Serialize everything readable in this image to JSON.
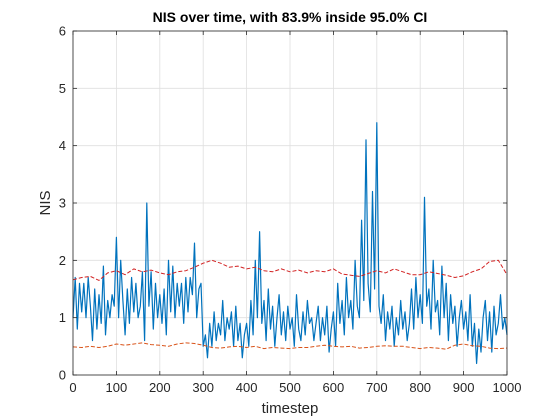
{
  "figure": {
    "background": "#ffffff"
  },
  "chart_data": {
    "type": "line",
    "title": "NIS over time, with 83.9% inside 95.0% CI",
    "xlabel": "timestep",
    "ylabel": "NIS",
    "xlim": [
      0,
      1000
    ],
    "ylim": [
      0,
      6
    ],
    "xticks": [
      "0",
      "100",
      "200",
      "300",
      "400",
      "500",
      "600",
      "700",
      "800",
      "900",
      "1000"
    ],
    "yticks": [
      "0",
      "1",
      "2",
      "3",
      "4",
      "5",
      "6"
    ],
    "grid": true,
    "colors": {
      "nis": "#0072BD",
      "ci_upper": "#D22222",
      "ci_lower": "#D95319",
      "grid": "#DFDFDF",
      "axis": "#262626"
    },
    "series": [
      {
        "role": "nis",
        "style": "solid",
        "x": [
          0,
          5,
          10,
          15,
          20,
          25,
          30,
          35,
          40,
          45,
          50,
          55,
          60,
          65,
          70,
          75,
          80,
          85,
          90,
          95,
          100,
          105,
          110,
          115,
          120,
          125,
          130,
          135,
          140,
          145,
          150,
          155,
          160,
          165,
          170,
          175,
          180,
          185,
          190,
          195,
          200,
          205,
          210,
          215,
          220,
          225,
          230,
          235,
          240,
          245,
          250,
          255,
          260,
          265,
          270,
          275,
          280,
          285,
          290,
          295,
          300,
          305,
          310,
          315,
          320,
          325,
          330,
          335,
          340,
          345,
          350,
          355,
          360,
          365,
          370,
          375,
          380,
          385,
          390,
          395,
          400,
          405,
          410,
          415,
          420,
          425,
          430,
          435,
          440,
          445,
          450,
          455,
          460,
          465,
          470,
          475,
          480,
          485,
          490,
          495,
          500,
          505,
          510,
          515,
          520,
          525,
          530,
          535,
          540,
          545,
          550,
          555,
          560,
          565,
          570,
          575,
          580,
          585,
          590,
          595,
          600,
          605,
          610,
          615,
          620,
          625,
          630,
          635,
          640,
          645,
          650,
          655,
          660,
          665,
          670,
          675,
          680,
          685,
          690,
          695,
          700,
          705,
          710,
          715,
          720,
          725,
          730,
          735,
          740,
          745,
          750,
          755,
          760,
          765,
          770,
          775,
          780,
          785,
          790,
          795,
          800,
          805,
          810,
          815,
          820,
          825,
          830,
          835,
          840,
          845,
          850,
          855,
          860,
          865,
          870,
          875,
          880,
          885,
          890,
          895,
          900,
          905,
          910,
          915,
          920,
          925,
          930,
          935,
          940,
          945,
          950,
          955,
          960,
          965,
          970,
          975,
          980,
          985,
          990,
          995,
          1000
        ],
        "y": [
          1.0,
          1.7,
          0.8,
          1.6,
          1.1,
          1.6,
          1.0,
          1.7,
          1.2,
          0.6,
          1.5,
          0.8,
          1.4,
          0.9,
          1.9,
          0.7,
          1.3,
          1.0,
          1.4,
          1.2,
          2.4,
          1.0,
          2.0,
          1.3,
          0.7,
          1.5,
          0.9,
          1.7,
          1.1,
          1.6,
          1.0,
          1.2,
          1.8,
          0.6,
          3.0,
          1.2,
          1.8,
          0.8,
          1.6,
          1.0,
          1.4,
          0.9,
          1.5,
          0.7,
          2.0,
          1.1,
          1.9,
          1.0,
          1.6,
          1.2,
          1.6,
          0.9,
          1.7,
          1.1,
          1.7,
          1.4,
          2.3,
          1.0,
          1.5,
          1.6,
          0.5,
          0.7,
          0.3,
          0.9,
          0.5,
          1.1,
          0.6,
          0.9,
          0.7,
          1.3,
          0.6,
          1.0,
          0.8,
          1.1,
          0.5,
          1.2,
          0.6,
          0.9,
          0.3,
          0.7,
          0.9,
          0.5,
          1.3,
          0.7,
          2.0,
          1.0,
          2.5,
          0.9,
          1.3,
          0.6,
          1.5,
          0.8,
          1.2,
          0.5,
          1.0,
          1.4,
          0.7,
          1.1,
          0.6,
          1.2,
          0.8,
          1.0,
          0.5,
          1.4,
          0.8,
          0.6,
          1.1,
          0.7,
          1.3,
          0.9,
          1.0,
          0.6,
          0.9,
          1.2,
          0.6,
          1.0,
          0.7,
          1.2,
          0.4,
          0.8,
          1.1,
          0.5,
          1.6,
          0.9,
          1.3,
          0.7,
          1.7,
          1.0,
          1.3,
          0.8,
          2.0,
          1.2,
          1.0,
          2.7,
          1.3,
          4.1,
          1.6,
          1.1,
          3.2,
          1.5,
          4.4,
          1.2,
          0.9,
          1.4,
          0.6,
          1.1,
          0.8,
          1.2,
          0.5,
          1.0,
          0.7,
          1.3,
          0.8,
          1.1,
          0.6,
          0.9,
          1.5,
          0.8,
          1.7,
          1.0,
          1.4,
          0.9,
          3.1,
          1.2,
          1.5,
          0.8,
          2.0,
          1.1,
          1.3,
          0.7,
          1.9,
          1.0,
          1.6,
          0.6,
          1.4,
          0.9,
          1.2,
          0.5,
          1.0,
          1.3,
          0.8,
          1.1,
          0.6,
          1.4,
          0.5,
          0.9,
          0.2,
          0.8,
          0.4,
          1.0,
          1.3,
          0.6,
          1.1,
          0.4,
          1.2,
          0.7,
          0.9,
          1.4,
          0.8,
          1.0,
          0.7
        ]
      },
      {
        "role": "ci_upper",
        "style": "dashed",
        "x": [
          0,
          20,
          40,
          60,
          80,
          100,
          120,
          140,
          160,
          180,
          200,
          220,
          240,
          260,
          280,
          300,
          320,
          340,
          360,
          380,
          400,
          420,
          440,
          460,
          480,
          500,
          520,
          540,
          560,
          580,
          600,
          620,
          640,
          660,
          680,
          700,
          720,
          740,
          760,
          780,
          800,
          820,
          840,
          860,
          880,
          900,
          920,
          940,
          960,
          980,
          1000
        ],
        "y": [
          1.66,
          1.7,
          1.72,
          1.65,
          1.78,
          1.82,
          1.75,
          1.85,
          1.8,
          1.83,
          1.78,
          1.75,
          1.8,
          1.82,
          1.88,
          1.95,
          2.0,
          1.95,
          1.88,
          1.9,
          1.85,
          1.88,
          1.82,
          1.8,
          1.85,
          1.8,
          1.83,
          1.78,
          1.82,
          1.8,
          1.85,
          1.76,
          1.74,
          1.72,
          1.77,
          1.82,
          1.78,
          1.85,
          1.8,
          1.75,
          1.75,
          1.8,
          1.77,
          1.74,
          1.7,
          1.73,
          1.8,
          1.85,
          1.98,
          2.0,
          1.75
        ]
      },
      {
        "role": "ci_lower",
        "style": "dashed",
        "x": [
          0,
          20,
          40,
          60,
          80,
          100,
          120,
          140,
          160,
          180,
          200,
          220,
          240,
          260,
          280,
          300,
          320,
          340,
          360,
          380,
          400,
          420,
          440,
          460,
          480,
          500,
          520,
          540,
          560,
          580,
          600,
          620,
          640,
          660,
          680,
          700,
          720,
          740,
          760,
          780,
          800,
          820,
          840,
          860,
          880,
          900,
          920,
          940,
          960,
          980,
          1000
        ],
        "y": [
          0.49,
          0.48,
          0.5,
          0.48,
          0.5,
          0.54,
          0.52,
          0.54,
          0.56,
          0.53,
          0.52,
          0.5,
          0.54,
          0.56,
          0.55,
          0.52,
          0.48,
          0.47,
          0.49,
          0.5,
          0.48,
          0.5,
          0.46,
          0.48,
          0.47,
          0.46,
          0.48,
          0.48,
          0.5,
          0.52,
          0.5,
          0.49,
          0.5,
          0.47,
          0.48,
          0.5,
          0.51,
          0.5,
          0.5,
          0.48,
          0.46,
          0.48,
          0.47,
          0.45,
          0.52,
          0.54,
          0.51,
          0.5,
          0.47,
          0.46,
          0.47
        ]
      }
    ]
  }
}
